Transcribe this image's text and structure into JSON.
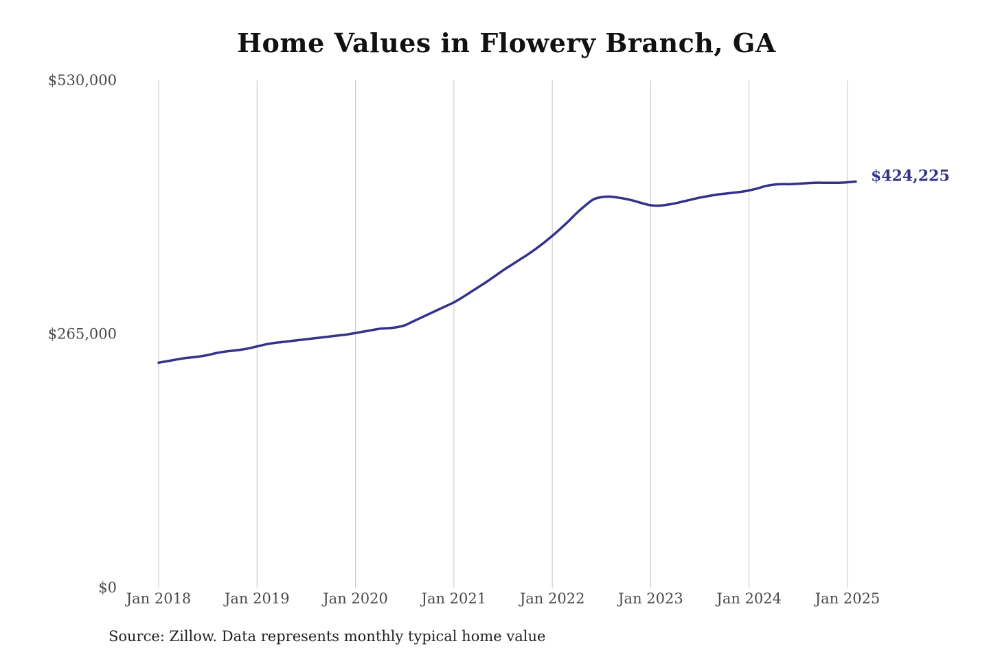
{
  "chart_data": {
    "type": "line",
    "title": "Home Values in Flowery Branch, GA",
    "xlabel": "",
    "ylabel": "",
    "x_ticks": [
      "Jan 2018",
      "Jan 2019",
      "Jan 2020",
      "Jan 2021",
      "Jan 2022",
      "Jan 2023",
      "Jan 2024",
      "Jan 2025"
    ],
    "y_ticks": [
      "$0",
      "$265,000",
      "$530,000"
    ],
    "y_tick_values": [
      0,
      265000,
      530000
    ],
    "ylim": [
      0,
      530000
    ],
    "xlim": [
      "2018-01",
      "2025-01"
    ],
    "grid": "vertical",
    "line_color": "#33318a",
    "end_label": "$424,225",
    "series": [
      {
        "x": [
          "2018-01",
          "2018-02",
          "2018-03",
          "2018-04",
          "2018-05",
          "2018-06",
          "2018-07",
          "2018-08",
          "2018-09",
          "2018-10",
          "2018-11",
          "2018-12",
          "2019-01",
          "2019-02",
          "2019-03",
          "2019-04",
          "2019-05",
          "2019-06",
          "2019-07",
          "2019-08",
          "2019-09",
          "2019-10",
          "2019-11",
          "2019-12",
          "2020-01",
          "2020-02",
          "2020-03",
          "2020-04",
          "2020-05",
          "2020-06",
          "2020-07",
          "2020-08",
          "2020-09",
          "2020-10",
          "2020-11",
          "2020-12",
          "2021-01",
          "2021-02",
          "2021-03",
          "2021-04",
          "2021-05",
          "2021-06",
          "2021-07",
          "2021-08",
          "2021-09",
          "2021-10",
          "2021-11",
          "2021-12",
          "2022-01",
          "2022-02",
          "2022-03",
          "2022-04",
          "2022-05",
          "2022-06",
          "2022-07",
          "2022-08",
          "2022-09",
          "2022-10",
          "2022-11",
          "2022-12",
          "2023-01",
          "2023-02",
          "2023-03",
          "2023-04",
          "2023-05",
          "2023-06",
          "2023-07",
          "2023-08",
          "2023-09",
          "2023-10",
          "2023-11",
          "2023-12",
          "2024-01",
          "2024-02",
          "2024-03",
          "2024-04",
          "2024-05",
          "2024-06",
          "2024-07",
          "2024-08",
          "2024-09",
          "2024-10",
          "2024-11",
          "2024-12",
          "2025-01",
          "2025-02"
        ],
        "values": [
          235000,
          236500,
          238000,
          239500,
          240500,
          241500,
          243000,
          245000,
          246500,
          247500,
          248500,
          250000,
          252000,
          254000,
          255500,
          256500,
          257500,
          258500,
          259500,
          260500,
          261500,
          262500,
          263500,
          264500,
          266000,
          267500,
          269000,
          270500,
          271000,
          272000,
          274000,
          278000,
          282000,
          286000,
          290000,
          294000,
          298000,
          303000,
          308500,
          314000,
          319500,
          325500,
          331500,
          337000,
          342500,
          348000,
          354000,
          360500,
          367500,
          375000,
          383000,
          391500,
          399000,
          405500,
          408000,
          408500,
          407500,
          406000,
          404000,
          401500,
          399500,
          399000,
          400000,
          401500,
          403500,
          405500,
          407500,
          409000,
          410500,
          411500,
          412500,
          413500,
          415000,
          417000,
          419500,
          421000,
          421500,
          421500,
          422000,
          422500,
          423000,
          423000,
          423000,
          423000,
          423500,
          424225
        ]
      }
    ]
  },
  "source_note": "Source: Zillow. Data represents monthly typical home value"
}
